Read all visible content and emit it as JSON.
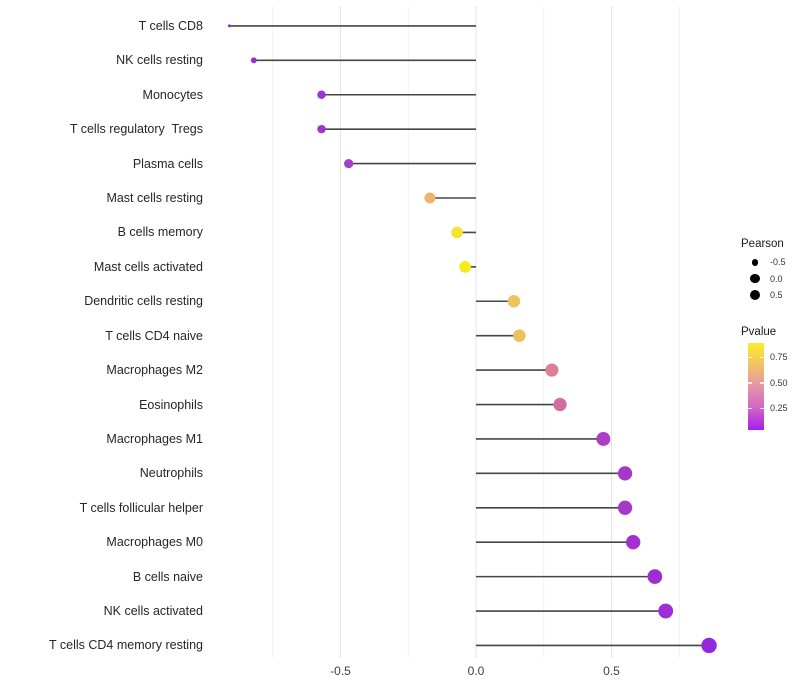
{
  "chart_data": {
    "type": "scatter",
    "subtype": "lollipop",
    "title": "",
    "xlabel": "",
    "ylabel": "",
    "xlim": [
      -1.0,
      0.95
    ],
    "grid": "vertical-only",
    "x_ticks": {
      "major": [
        -0.5,
        0.0,
        0.5
      ],
      "minor": [
        -0.75,
        -0.25,
        0.25,
        0.75
      ],
      "labels": [
        "-0.5",
        "0.0",
        "0.5"
      ]
    },
    "points": [
      {
        "label": "T cells CD8",
        "pearson": -0.91,
        "color": "#8F2BD8"
      },
      {
        "label": "NK cells resting",
        "pearson": -0.82,
        "color": "#9530D4"
      },
      {
        "label": "Monocytes",
        "pearson": -0.57,
        "color": "#9C36CE"
      },
      {
        "label": "T cells regulatory  Tregs",
        "pearson": -0.57,
        "color": "#9C36CE"
      },
      {
        "label": "Plasma cells",
        "pearson": -0.47,
        "color": "#A440C9"
      },
      {
        "label": "Mast cells resting",
        "pearson": -0.17,
        "color": "#EDB36A"
      },
      {
        "label": "B cells memory",
        "pearson": -0.07,
        "color": "#F5E42B"
      },
      {
        "label": "Mast cells activated",
        "pearson": -0.04,
        "color": "#F3EC15"
      },
      {
        "label": "Dendritic cells resting",
        "pearson": 0.14,
        "color": "#EEC463"
      },
      {
        "label": "T cells CD4 naive",
        "pearson": 0.16,
        "color": "#EDBF5F"
      },
      {
        "label": "Macrophages M2",
        "pearson": 0.28,
        "color": "#DD8095"
      },
      {
        "label": "Eosinophils",
        "pearson": 0.31,
        "color": "#D16CA0"
      },
      {
        "label": "Macrophages M1",
        "pearson": 0.47,
        "color": "#AD3CC6"
      },
      {
        "label": "Neutrophils",
        "pearson": 0.55,
        "color": "#A538CB"
      },
      {
        "label": "T cells follicular helper",
        "pearson": 0.55,
        "color": "#A538CB"
      },
      {
        "label": "Macrophages M0",
        "pearson": 0.58,
        "color": "#A530D0"
      },
      {
        "label": "B cells naive",
        "pearson": 0.66,
        "color": "#9C2ED4"
      },
      {
        "label": "NK cells activated",
        "pearson": 0.7,
        "color": "#9C2ED4"
      },
      {
        "label": "T cells CD4 memory resting",
        "pearson": 0.86,
        "color": "#9429DA"
      }
    ],
    "legend": {
      "size": {
        "title": "Pearson",
        "items": [
          {
            "label": "-0.5",
            "value": -0.5
          },
          {
            "label": "0.0",
            "value": 0.0
          },
          {
            "label": "0.5",
            "value": 0.5
          }
        ]
      },
      "color": {
        "title": "Pvalue",
        "tick_labels": [
          "0.75",
          "0.50",
          "0.25"
        ],
        "tick_values": [
          0.75,
          0.5,
          0.25
        ],
        "gradient_top_to_bottom": [
          "#FAED29",
          "#F2C366",
          "#E494A7",
          "#CF66C6",
          "#A81CF2"
        ]
      }
    },
    "style": {
      "stick_color": "#464646",
      "grid_major_color": "#E6E6E6",
      "grid_minor_color": "#F1F1F1",
      "axis_text_color": "#404040",
      "label_text_color": "#262626",
      "legend_dot_color": "#000000",
      "background": "#FFFFFF"
    }
  }
}
